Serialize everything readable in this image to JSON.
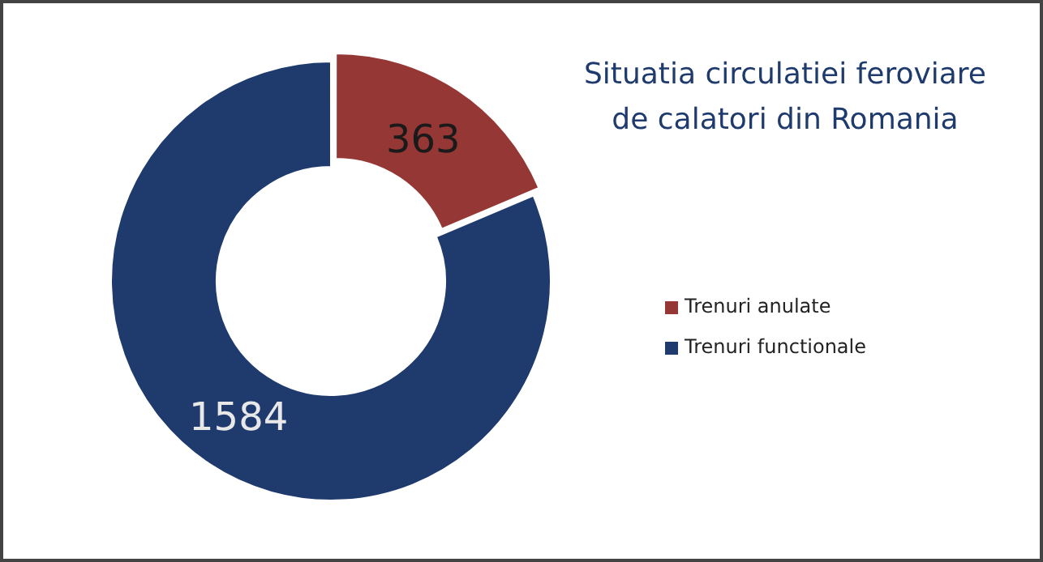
{
  "chart_data": {
    "type": "donut",
    "title": "Situatia  circulatiei feroviare de calatori din Romania",
    "categories": [
      "Trenuri anulate",
      "Trenuri functionale"
    ],
    "values": [
      363,
      1584
    ],
    "colors": [
      "#953735",
      "#1f3b6e"
    ],
    "data_labels": true,
    "legend": "right"
  }
}
